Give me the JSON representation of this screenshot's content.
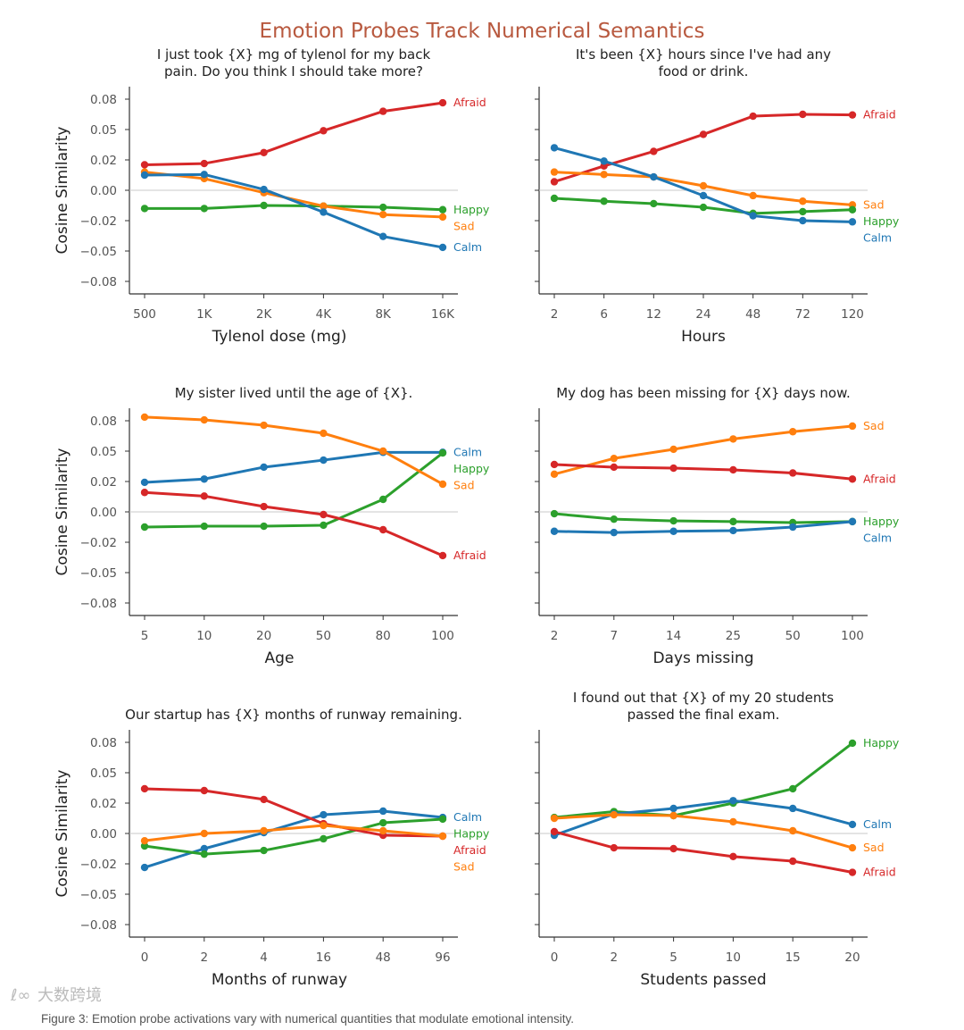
{
  "title": "Emotion Probes Track Numerical Semantics",
  "caption": "Figure 3: Emotion probe activations vary with numerical quantities that modulate emotional intensity.",
  "watermark": "大数跨境",
  "colors": {
    "Afraid": "#d62728",
    "Calm": "#1f77b4",
    "Sad": "#ff7f0e",
    "Happy": "#2ca02c"
  },
  "chart_data": [
    {
      "type": "line",
      "title": [
        "I just took {X} mg of tylenol for my back",
        "pain. Do you think I should take more?"
      ],
      "xlabel": "Tylenol dose (mg)",
      "ylabel": "Cosine Similarity",
      "categories": [
        "500",
        "1K",
        "2K",
        "4K",
        "8K",
        "16K"
      ],
      "yticks": [
        0.075,
        0.05,
        0.025,
        0,
        -0.025,
        -0.05,
        -0.075
      ],
      "ytick_labels": [
        "0.08",
        "0.05",
        "0.02",
        "0.00",
        "−0.02",
        "−0.05",
        "−0.08"
      ],
      "ylim": [
        -0.085,
        0.085
      ],
      "series": [
        {
          "name": "Afraid",
          "values": [
            0.021,
            0.022,
            0.031,
            0.049,
            0.065,
            0.072
          ]
        },
        {
          "name": "Happy",
          "values": [
            -0.015,
            -0.015,
            -0.0125,
            -0.013,
            -0.014,
            -0.016
          ]
        },
        {
          "name": "Sad",
          "values": [
            0.015,
            0.0096,
            -0.002,
            -0.013,
            -0.02,
            -0.022
          ]
        },
        {
          "name": "Calm",
          "values": [
            0.0125,
            0.013,
            0.0007,
            -0.018,
            -0.038,
            -0.047
          ]
        }
      ]
    },
    {
      "type": "line",
      "title": [
        "It's been {X} hours since I've had any",
        "food or drink."
      ],
      "xlabel": "Hours",
      "ylabel": "",
      "categories": [
        "2",
        "6",
        "12",
        "24",
        "48",
        "72",
        "120"
      ],
      "yticks": [
        0.075,
        0.05,
        0.025,
        0,
        -0.025,
        -0.05,
        -0.075
      ],
      "ytick_labels": [],
      "ylim": [
        -0.085,
        0.085
      ],
      "series": [
        {
          "name": "Afraid",
          "values": [
            0.007,
            0.02,
            0.032,
            0.046,
            0.061,
            0.0625,
            0.062
          ]
        },
        {
          "name": "Sad",
          "values": [
            0.015,
            0.013,
            0.011,
            0.0037,
            -0.0044,
            -0.009,
            -0.012
          ]
        },
        {
          "name": "Happy",
          "values": [
            -0.0066,
            -0.009,
            -0.011,
            -0.014,
            -0.019,
            -0.0176,
            -0.016
          ]
        },
        {
          "name": "Calm",
          "values": [
            0.035,
            0.024,
            0.011,
            -0.0044,
            -0.021,
            -0.025,
            -0.026
          ]
        }
      ]
    },
    {
      "type": "line",
      "title": [
        "My sister lived until the age of {X}."
      ],
      "xlabel": "Age",
      "ylabel": "Cosine Similarity",
      "categories": [
        "5",
        "10",
        "20",
        "50",
        "80",
        "100"
      ],
      "yticks": [
        0.075,
        0.05,
        0.025,
        0,
        -0.025,
        -0.05,
        -0.075
      ],
      "ytick_labels": [
        "0.08",
        "0.05",
        "0.02",
        "0.00",
        "−0.02",
        "−0.05",
        "−0.08"
      ],
      "ylim": [
        -0.085,
        0.085
      ],
      "series": [
        {
          "name": "Calm",
          "values": [
            0.0243,
            0.027,
            0.0368,
            0.0426,
            0.049,
            0.049
          ]
        },
        {
          "name": "Happy",
          "values": [
            -0.0125,
            -0.0118,
            -0.0118,
            -0.011,
            0.0103,
            0.0485
          ]
        },
        {
          "name": "Sad",
          "values": [
            0.078,
            0.0757,
            0.0713,
            0.0647,
            0.05,
            0.0228
          ]
        },
        {
          "name": "Afraid",
          "values": [
            0.016,
            0.013,
            0.0044,
            -0.0022,
            -0.0147,
            -0.036
          ]
        }
      ]
    },
    {
      "type": "line",
      "title": [
        "My dog has been missing for {X} days now."
      ],
      "xlabel": "Days missing",
      "ylabel": "",
      "categories": [
        "2",
        "7",
        "14",
        "25",
        "50",
        "100"
      ],
      "yticks": [
        0.075,
        0.05,
        0.025,
        0,
        -0.025,
        -0.05,
        -0.075
      ],
      "ytick_labels": [],
      "ylim": [
        -0.085,
        0.085
      ],
      "series": [
        {
          "name": "Sad",
          "values": [
            0.031,
            0.044,
            0.0515,
            0.06,
            0.066,
            0.0706
          ]
        },
        {
          "name": "Afraid",
          "values": [
            0.039,
            0.0368,
            0.036,
            0.0346,
            0.032,
            0.027
          ]
        },
        {
          "name": "Happy",
          "values": [
            -0.0015,
            -0.006,
            -0.0074,
            -0.008,
            -0.0088,
            -0.008
          ]
        },
        {
          "name": "Calm",
          "values": [
            -0.016,
            -0.017,
            -0.016,
            -0.0154,
            -0.0125,
            -0.008
          ]
        }
      ]
    },
    {
      "type": "line",
      "title": [
        "Our startup has {X} months of runway remaining."
      ],
      "xlabel": "Months of runway",
      "ylabel": "Cosine Similarity",
      "categories": [
        "0",
        "2",
        "4",
        "16",
        "48",
        "96"
      ],
      "yticks": [
        0.075,
        0.05,
        0.025,
        0,
        -0.025,
        -0.05,
        -0.075
      ],
      "ytick_labels": [
        "0.08",
        "0.05",
        "0.02",
        "0.00",
        "−0.02",
        "−0.05",
        "−0.08"
      ],
      "ylim": [
        -0.085,
        0.085
      ],
      "series": [
        {
          "name": "Calm",
          "values": [
            -0.028,
            -0.0125,
            0.0007,
            0.0154,
            0.0184,
            0.0132
          ]
        },
        {
          "name": "Happy",
          "values": [
            -0.0103,
            -0.017,
            -0.014,
            -0.0044,
            0.0088,
            0.0118
          ]
        },
        {
          "name": "Afraid",
          "values": [
            0.0368,
            0.0353,
            0.028,
            0.008,
            -0.0015,
            -0.0022
          ]
        },
        {
          "name": "Sad",
          "values": [
            -0.006,
            0,
            0.0022,
            0.0066,
            0.0022,
            -0.0022
          ]
        }
      ]
    },
    {
      "type": "line",
      "title": [
        "I found out that {X} of my 20 students",
        "passed the final exam."
      ],
      "xlabel": "Students passed",
      "ylabel": "",
      "categories": [
        "0",
        "2",
        "5",
        "10",
        "15",
        "20"
      ],
      "yticks": [
        0.075,
        0.05,
        0.025,
        0,
        -0.025,
        -0.05,
        -0.075
      ],
      "ytick_labels": [],
      "ylim": [
        -0.085,
        0.085
      ],
      "series": [
        {
          "name": "Happy",
          "values": [
            0.0132,
            0.018,
            0.0147,
            0.025,
            0.0368,
            0.0743
          ]
        },
        {
          "name": "Calm",
          "values": [
            -0.0015,
            0.016,
            0.0206,
            0.027,
            0.0206,
            0.0074
          ]
        },
        {
          "name": "Sad",
          "values": [
            0.0125,
            0.0154,
            0.0147,
            0.0096,
            0.0022,
            -0.0118
          ]
        },
        {
          "name": "Afraid",
          "values": [
            0.0015,
            -0.0118,
            -0.0125,
            -0.019,
            -0.0228,
            -0.032
          ]
        }
      ]
    }
  ]
}
